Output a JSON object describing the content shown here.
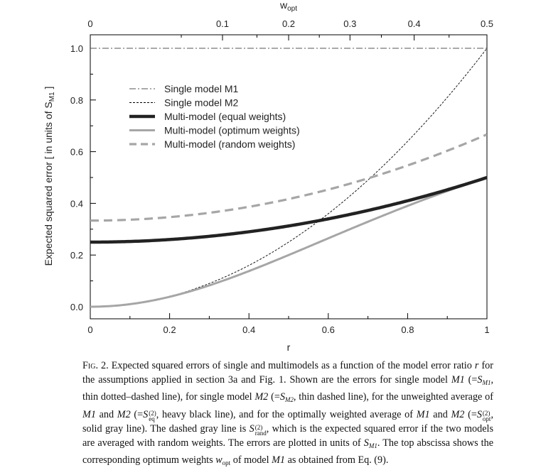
{
  "chart_data": {
    "type": "line",
    "x_label": "r",
    "top_axis_label": "w_opt",
    "y_label_prefix": "Expected squared error  [ in units of S",
    "y_label_sub": "M1",
    "y_label_suffix": " ]",
    "xlim": [
      0,
      1
    ],
    "ylim": [
      0,
      1
    ],
    "x_ticks": [
      0,
      0.2,
      0.4,
      0.6,
      0.8,
      1
    ],
    "x_tick_labels": [
      "0",
      "0.2",
      "0.4",
      "0.6",
      "0.8",
      "1"
    ],
    "y_ticks": [
      0,
      0.2,
      0.4,
      0.6,
      0.8,
      1.0
    ],
    "y_tick_labels": [
      "0.0",
      "0.2",
      "0.4",
      "0.6",
      "0.8",
      "1.0"
    ],
    "top_ticks_wopt": [
      0,
      0.1,
      0.2,
      0.3,
      0.4,
      0.5
    ],
    "top_tick_labels": [
      "0",
      "0.1",
      "0.2",
      "0.3",
      "0.4",
      "0.5"
    ],
    "series": [
      {
        "name": "Single model M1",
        "style": "dashdot",
        "color": "#000000",
        "formula": "1",
        "x": [
          0,
          1
        ],
        "y": [
          1,
          1
        ]
      },
      {
        "name": "Single model M2",
        "style": "dashed-thin",
        "color": "#000000",
        "formula": "r^2",
        "x": [
          0,
          0.2,
          0.4,
          0.6,
          0.8,
          1
        ],
        "y": [
          0,
          0.04,
          0.16,
          0.36,
          0.64,
          1
        ]
      },
      {
        "name": "Multi-model (equal weights)",
        "style": "solid-heavy",
        "color": "#222222",
        "formula": "(1+r^2)/4",
        "x": [
          0,
          0.2,
          0.4,
          0.6,
          0.8,
          1
        ],
        "y": [
          0.25,
          0.26,
          0.29,
          0.34,
          0.41,
          0.5
        ]
      },
      {
        "name": "Multi-model (optimum weights)",
        "style": "solid-gray",
        "color": "#a6a6a6",
        "formula": "r^2/(1+r^2)",
        "x": [
          0,
          0.2,
          0.4,
          0.6,
          0.8,
          1
        ],
        "y": [
          0,
          0.038,
          0.138,
          0.265,
          0.39,
          0.5
        ]
      },
      {
        "name": "Multi-model (random weights)",
        "style": "dashed-gray",
        "color": "#a6a6a6",
        "formula": "(1+r^2)/3",
        "x": [
          0,
          0.2,
          0.4,
          0.6,
          0.8,
          1
        ],
        "y": [
          0.333,
          0.347,
          0.387,
          0.453,
          0.547,
          0.667
        ]
      }
    ],
    "legend_placement": "upper-left",
    "grid": false
  },
  "caption": {
    "fig_label": "Fig. 2.",
    "p1": " Expected squared errors of single and multimodels as a function of the model error ratio ",
    "r": "r",
    "p2": " for the assumptions applied in section 3a and Fig. 1. Shown are the errors for single model ",
    "m1a": "M1",
    "p3": " (=",
    "s1": "S",
    "s1sub": "M1",
    "p4": ", thin dotted–dashed line), for single model ",
    "m2a": "M2",
    "p5": " (=",
    "s2": "S",
    "s2sub": "M2",
    "p6": ", thin dashed line), for the unweighted average of ",
    "m1b": "M1",
    "p7": " and ",
    "m2b": "M2",
    "p8": " (=",
    "seq": "S",
    "seq_sup": "(2)",
    "seq_sub": "eq",
    "p9": ", heavy black line), and for the optimally weighted average of ",
    "m1c": "M1",
    "p10": " and ",
    "m2c": "M2",
    "p11": " (=",
    "sopt": "S",
    "sopt_sup": "(2)",
    "sopt_sub": "opt",
    "p12": ", solid gray line). The dashed gray line is ",
    "srand": "S",
    "srand_sup": "(2)",
    "srand_sub": "rand",
    "p13": ", which is the expected squared error if the two models are averaged with random weights. The errors are plotted in units of ",
    "s3": "S",
    "s3sub": "M1",
    "p14": ". The top abscissa shows the corresponding optimum weights ",
    "w": "w",
    "wsub": "opt",
    "p15": " of model ",
    "m1d": "M1",
    "p16": " as obtained from Eq. (9)."
  }
}
